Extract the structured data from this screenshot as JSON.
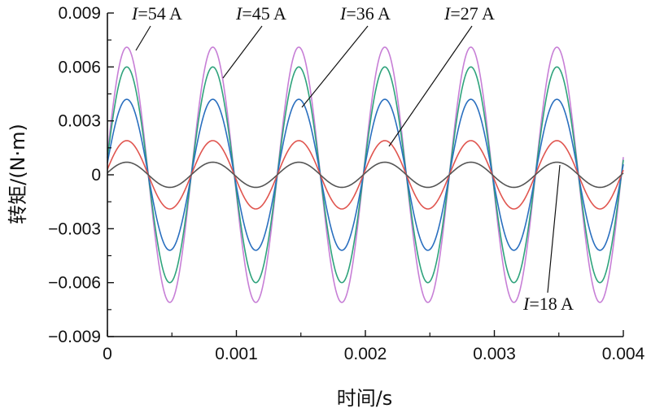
{
  "chart_data": {
    "type": "line",
    "xlabel": "时间/s",
    "ylabel": "转矩/(N·m)",
    "xlim": [
      0,
      0.004
    ],
    "ylim": [
      -0.009,
      0.009
    ],
    "xticks": [
      0,
      0.001,
      0.002,
      0.003,
      0.004
    ],
    "xtick_labels": [
      "0",
      "0.001",
      "0.002",
      "0.003",
      "0.004"
    ],
    "yticks": [
      -0.009,
      -0.006,
      -0.003,
      0,
      0.003,
      0.006,
      0.009
    ],
    "ytick_labels": [
      "−0.009",
      "−0.006",
      "−0.003",
      "0",
      "0.003",
      "0.006",
      "0.009"
    ],
    "grid": false,
    "wave": {
      "period": 0.000667,
      "phase_peak_x": 0.00015,
      "start_x": 0,
      "end_x": 0.004
    },
    "series": [
      {
        "name": "I=54 A",
        "var": "I",
        "value_text": "=54 A",
        "amplitude": 0.0071,
        "color": "#c77fd6"
      },
      {
        "name": "I=45 A",
        "var": "I",
        "value_text": "=45 A",
        "amplitude": 0.006,
        "color": "#2fa37c"
      },
      {
        "name": "I=36 A",
        "var": "I",
        "value_text": "=36 A",
        "amplitude": 0.0042,
        "color": "#2a6fbf"
      },
      {
        "name": "I=27 A",
        "var": "I",
        "value_text": "=27 A",
        "amplitude": 0.0019,
        "color": "#e0554f"
      },
      {
        "name": "I=18 A",
        "var": "I",
        "value_text": "=18 A",
        "amplitude": 0.0007,
        "color": "#555555"
      }
    ]
  }
}
